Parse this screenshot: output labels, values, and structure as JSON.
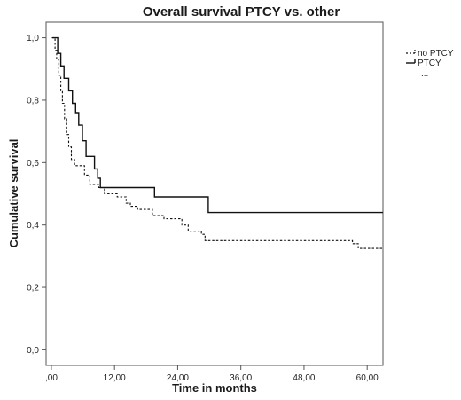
{
  "chart_data": {
    "type": "line",
    "title": "Overall survival PTCY vs. other",
    "xlabel": "Time in months",
    "ylabel": "Cumulative survival",
    "xlim": [
      -1,
      63
    ],
    "ylim": [
      -0.05,
      1.05
    ],
    "x_ticks": [
      0,
      12,
      24,
      36,
      48,
      60
    ],
    "x_tick_labels": [
      ",00",
      "12,00",
      "24,00",
      "36,00",
      "48,00",
      "60,00"
    ],
    "y_ticks": [
      0,
      0.2,
      0.4,
      0.6,
      0.8,
      1.0
    ],
    "y_tick_labels": [
      "0,0",
      "0,2",
      "0,4",
      "0,6",
      "0,8",
      "1,0"
    ],
    "grid": false,
    "legend_position": "top-right-outside",
    "legend_extra": "...",
    "series": [
      {
        "name": "no PTCY",
        "style": "dashed",
        "steps": [
          [
            0.1,
            1.0
          ],
          [
            0.7,
            0.96
          ],
          [
            1.0,
            0.93
          ],
          [
            1.4,
            0.88
          ],
          [
            1.8,
            0.83
          ],
          [
            2.1,
            0.79
          ],
          [
            2.5,
            0.74
          ],
          [
            2.9,
            0.69
          ],
          [
            3.3,
            0.65
          ],
          [
            3.8,
            0.61
          ],
          [
            4.4,
            0.59
          ],
          [
            6.3,
            0.56
          ],
          [
            7.3,
            0.53
          ],
          [
            9.0,
            0.52
          ],
          [
            10.1,
            0.5
          ],
          [
            12.5,
            0.49
          ],
          [
            14.2,
            0.47
          ],
          [
            15.0,
            0.46
          ],
          [
            16.4,
            0.45
          ],
          [
            19.2,
            0.43
          ],
          [
            21.4,
            0.42
          ],
          [
            24.8,
            0.4
          ],
          [
            26.0,
            0.38
          ],
          [
            28.5,
            0.37
          ],
          [
            29.2,
            0.35
          ],
          [
            57.2,
            0.34
          ],
          [
            58.3,
            0.325
          ],
          [
            63.0,
            0.325
          ]
        ]
      },
      {
        "name": "PTCY",
        "style": "solid",
        "steps": [
          [
            0.2,
            1.0
          ],
          [
            1.2,
            0.95
          ],
          [
            1.8,
            0.91
          ],
          [
            2.4,
            0.87
          ],
          [
            3.3,
            0.83
          ],
          [
            4.0,
            0.79
          ],
          [
            4.6,
            0.76
          ],
          [
            5.2,
            0.72
          ],
          [
            5.9,
            0.67
          ],
          [
            6.6,
            0.62
          ],
          [
            8.2,
            0.58
          ],
          [
            8.8,
            0.55
          ],
          [
            9.3,
            0.52
          ],
          [
            19.6,
            0.49
          ],
          [
            29.8,
            0.44
          ],
          [
            63.0,
            0.44
          ]
        ]
      }
    ]
  }
}
